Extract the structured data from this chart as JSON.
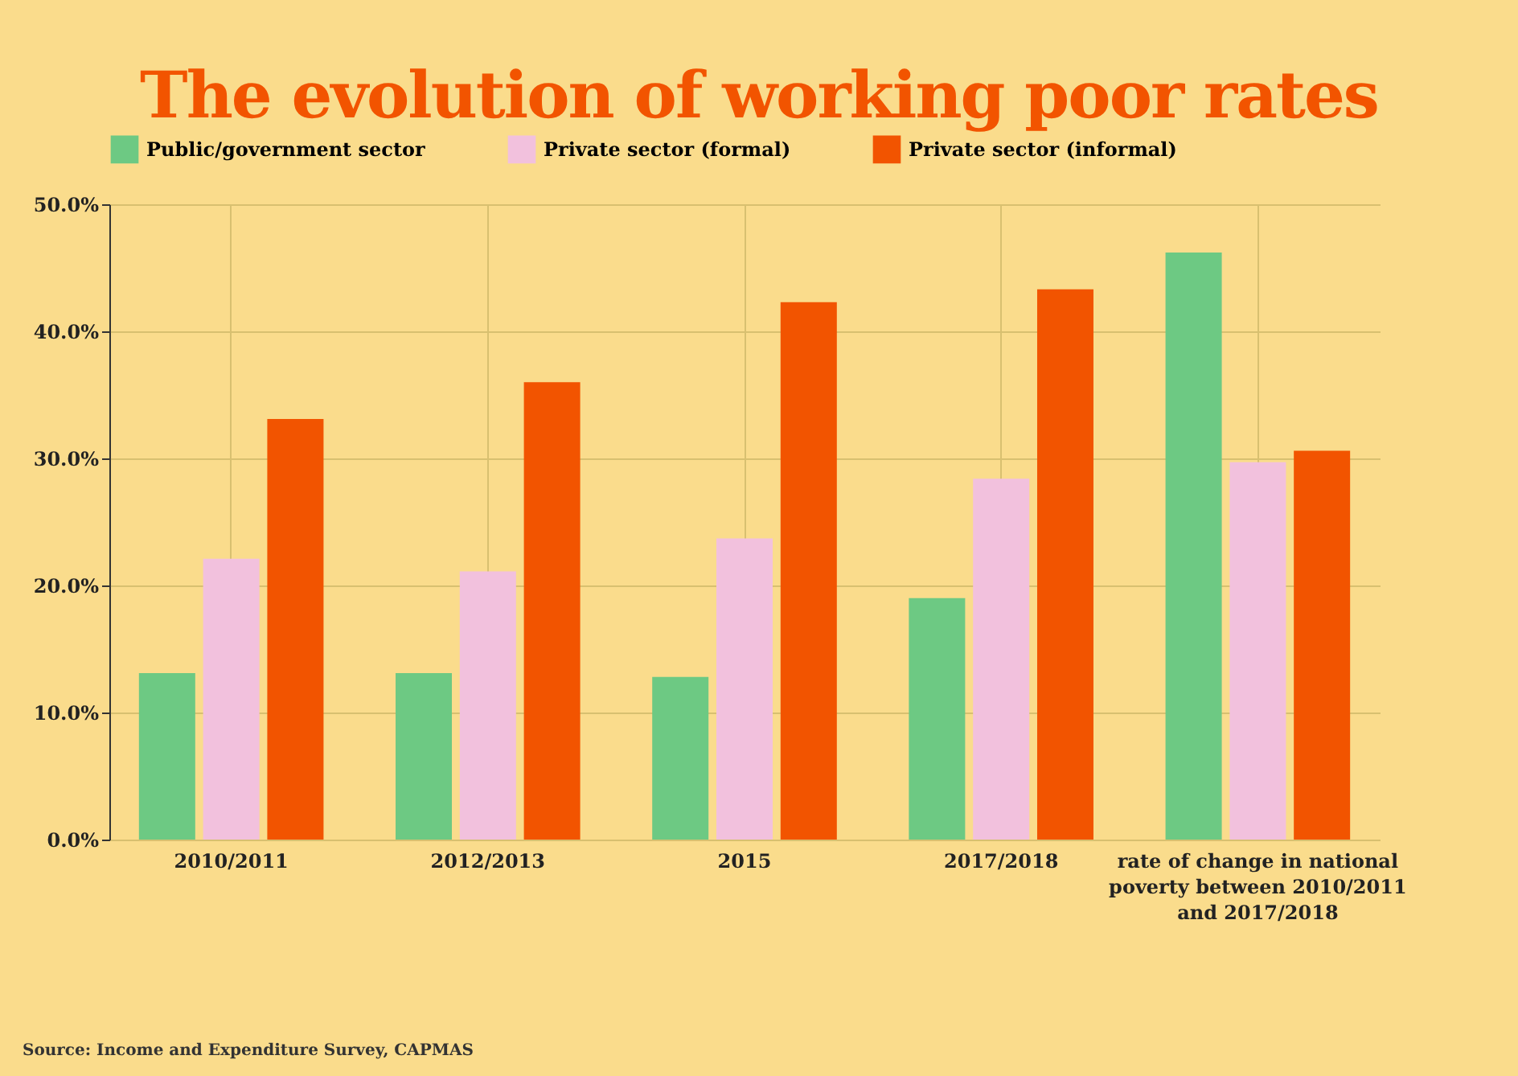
{
  "chart_data": {
    "type": "bar",
    "title": "The evolution of working poor rates",
    "categories": [
      "2010/2011",
      "2012/2013",
      "2015",
      "2017/2018",
      "rate of change in national poverty between 2010/2011 and 2017/2018"
    ],
    "series": [
      {
        "name": "Public/government sector",
        "color": "#6dc983",
        "values": [
          13.1,
          13.1,
          12.8,
          19.0,
          46.2
        ]
      },
      {
        "name": "Private sector (formal)",
        "color": "#f2c1dd",
        "values": [
          22.1,
          21.1,
          23.7,
          28.4,
          29.7
        ]
      },
      {
        "name": "Private sector (informal)",
        "color": "#f25400",
        "values": [
          33.1,
          36.0,
          42.3,
          43.3,
          30.6
        ]
      }
    ],
    "ylim": [
      0,
      50
    ],
    "yticks": [
      {
        "value": 0,
        "label": "0.0%"
      },
      {
        "value": 10,
        "label": "10.0%"
      },
      {
        "value": 20,
        "label": "20.0%"
      },
      {
        "value": 30,
        "label": "30.0%"
      },
      {
        "value": 40,
        "label": "40.0%"
      },
      {
        "value": 50,
        "label": "50.0%"
      }
    ],
    "grid": true,
    "legend": "top",
    "annotations": [
      "Source: Income and Expenditure Survey, CAPMAS"
    ]
  }
}
